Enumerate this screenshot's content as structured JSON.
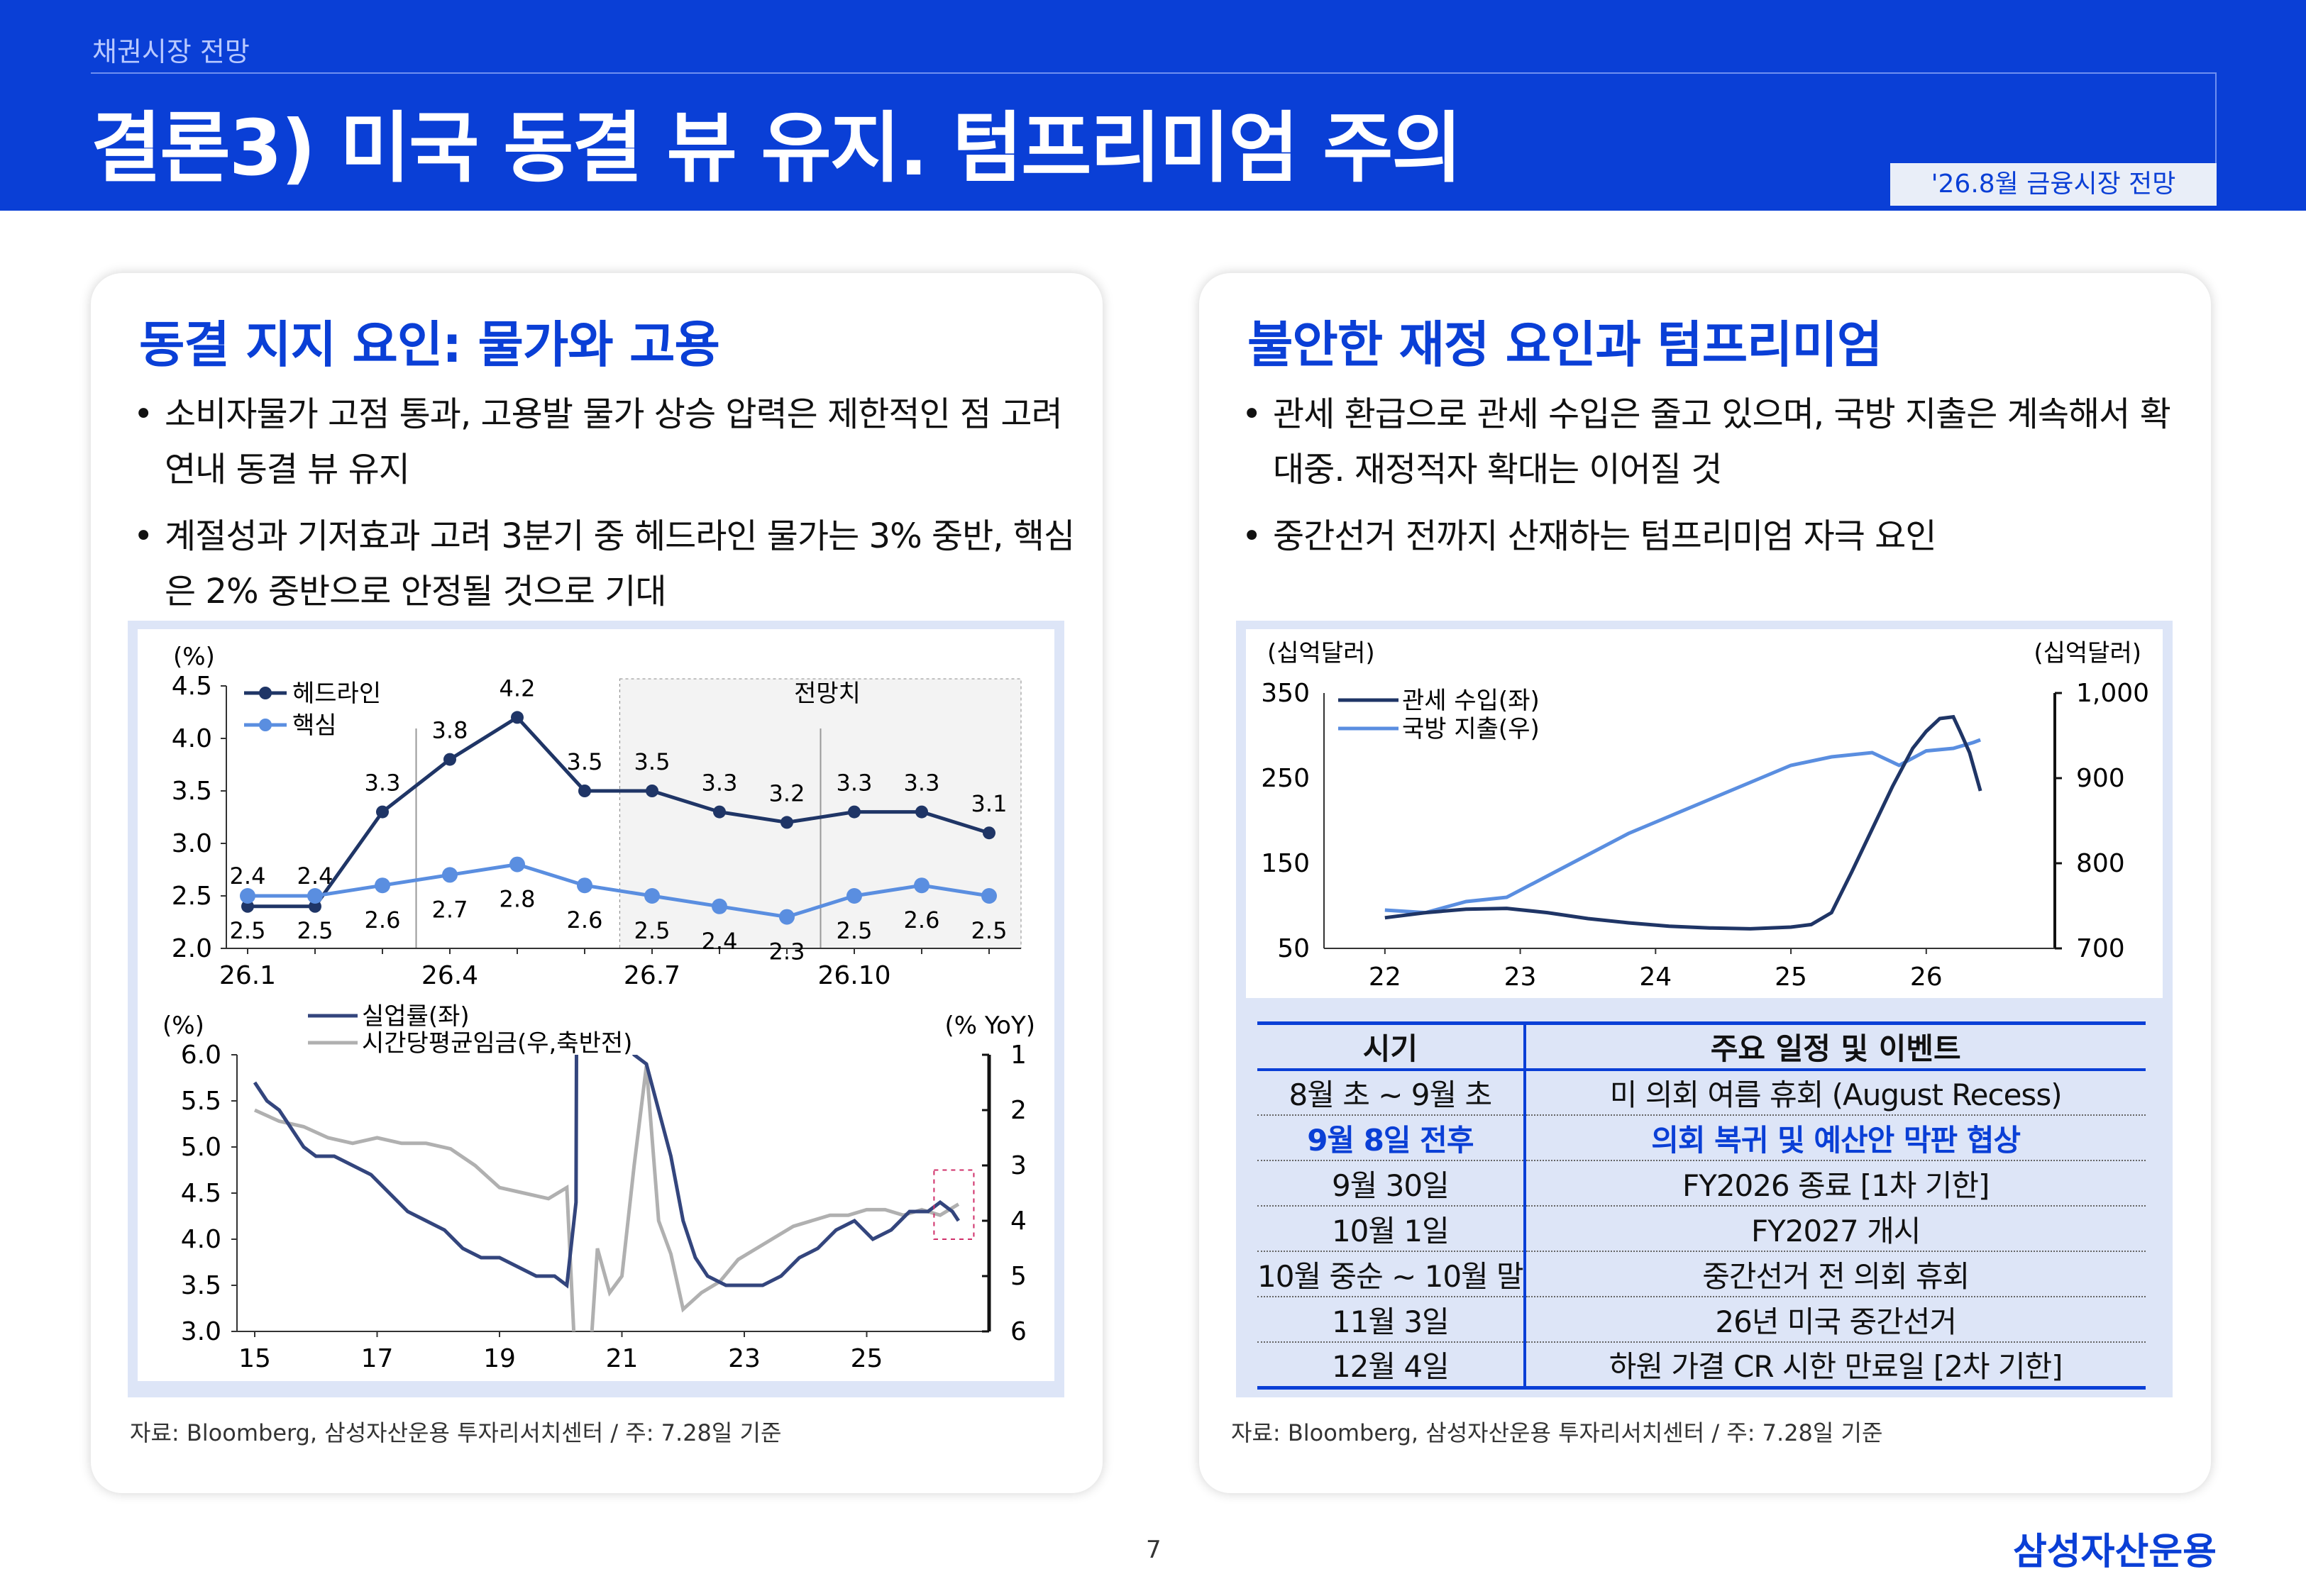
{
  "header": {
    "section": "채권시장 전망",
    "title": "결론3) 미국 동결 뷰 유지. 텀프리미엄 주의",
    "tag": "'26.8월 금융시장 전망"
  },
  "left_panel": {
    "title": "동결 지지 요인: 물가와 고용",
    "bullets": [
      "소비자물가 고점 통과, 고용발 물가 상승 압력은 제한적인 점 고려 연내 동결 뷰 유지",
      "계절성과 기저효과 고려 3분기 중 헤드라인 물가는 3% 중반, 핵심은 2% 중반으로 안정될 것으로 기대"
    ],
    "source": "자료: Bloomberg, 삼성자산운용 투자리서치센터 / 주: 7.28일 기준"
  },
  "right_panel": {
    "title": "불안한 재정 요인과 텀프리미엄",
    "bullets": [
      "관세 환급으로 관세 수입은 줄고 있으며, 국방 지출은 계속해서 확대중. 재정적자 확대는 이어질 것",
      "중간선거 전까지 산재하는 텀프리미엄 자극 요인"
    ],
    "source": "자료: Bloomberg, 삼성자산운용 투자리서치센터 / 주: 7.28일 기준",
    "schedule": {
      "headers": [
        "시기",
        "주요 일정 및 이벤트"
      ],
      "rows": [
        {
          "date": "8월 초 ~ 9월 초",
          "event": "미 의회 여름 휴회 (August Recess)",
          "highlight": false
        },
        {
          "date": "9월 8일 전후",
          "event": "의회 복귀 및 예산안 막판 협상",
          "highlight": true
        },
        {
          "date": "9월 30일",
          "event": "FY2026 종료 [1차 기한]",
          "highlight": false
        },
        {
          "date": "10월 1일",
          "event": "FY2027 개시",
          "highlight": false
        },
        {
          "date": "10월 중순 ~ 10월 말",
          "event": "중간선거 전 의회 휴회",
          "highlight": false
        },
        {
          "date": "11월 3일",
          "event": "26년 미국 중간선거",
          "highlight": false
        },
        {
          "date": "12월 4일",
          "event": "하원 가결 CR 시한 만료일 [2차 기한]",
          "highlight": false
        }
      ]
    }
  },
  "page_number": "7",
  "logo": "삼성자산운용",
  "chart_data": [
    {
      "type": "line",
      "ylabel": "(%)",
      "ylim": [
        2.0,
        4.5
      ],
      "yticks": [
        "4.5",
        "4.0",
        "3.5",
        "3.0",
        "2.5",
        "2.0"
      ],
      "x_tick_labels": [
        "26.1",
        "26.4",
        "26.7",
        "26.10"
      ],
      "x": [
        1,
        2,
        3,
        4,
        5,
        6,
        7,
        8,
        9,
        10,
        11,
        12
      ],
      "shaded_label": "전망치",
      "shaded_from_month": 6.5,
      "series": [
        {
          "name": "헤드라인",
          "color": "#1f3566",
          "values": [
            2.4,
            2.4,
            3.3,
            3.8,
            4.2,
            3.5,
            3.5,
            3.3,
            3.2,
            3.3,
            3.3,
            3.1
          ]
        },
        {
          "name": "핵심",
          "color": "#5a8ee0",
          "values": [
            2.5,
            2.5,
            2.6,
            2.7,
            2.8,
            2.6,
            2.5,
            2.4,
            2.3,
            2.5,
            2.6,
            2.5
          ]
        }
      ]
    },
    {
      "type": "line",
      "ylabel_left": "(%)",
      "ylabel_right": "(% YoY)",
      "ylim_left": [
        3.0,
        6.0
      ],
      "yticks_left": [
        "6.0",
        "5.5",
        "5.0",
        "4.5",
        "4.0",
        "3.5",
        "3.0"
      ],
      "ylim_right_inverted": [
        1,
        6
      ],
      "yticks_right": [
        "1",
        "2",
        "3",
        "4",
        "5",
        "6"
      ],
      "x_tick_labels": [
        "15",
        "17",
        "19",
        "21",
        "23",
        "25"
      ],
      "series": [
        {
          "name": "실업률(좌)",
          "color": "#33457d",
          "x": [
            2015.0,
            2015.2,
            2015.4,
            2015.6,
            2015.8,
            2016.0,
            2016.3,
            2016.6,
            2016.9,
            2017.2,
            2017.5,
            2017.8,
            2018.1,
            2018.4,
            2018.7,
            2019.0,
            2019.3,
            2019.6,
            2019.9,
            2020.1,
            2020.25,
            2020.3,
            2020.45,
            2020.6,
            2020.75,
            2020.9,
            2021.0,
            2021.2,
            2021.4,
            2021.6,
            2021.8,
            2022.0,
            2022.2,
            2022.4,
            2022.7,
            2023.0,
            2023.3,
            2023.6,
            2023.9,
            2024.2,
            2024.5,
            2024.8,
            2025.1,
            2025.4,
            2025.7,
            2026.0,
            2026.2,
            2026.4,
            2026.5
          ],
          "values": [
            5.7,
            5.5,
            5.4,
            5.2,
            5.0,
            4.9,
            4.9,
            4.8,
            4.7,
            4.5,
            4.3,
            4.2,
            4.1,
            3.9,
            3.8,
            3.8,
            3.7,
            3.6,
            3.6,
            3.5,
            4.4,
            14.7,
            13.0,
            10.5,
            8.4,
            7.0,
            6.3,
            6.0,
            5.9,
            5.4,
            4.9,
            4.2,
            3.8,
            3.6,
            3.5,
            3.5,
            3.5,
            3.6,
            3.8,
            3.9,
            4.1,
            4.2,
            4.0,
            4.1,
            4.3,
            4.3,
            4.4,
            4.3,
            4.2
          ]
        },
        {
          "name": "시간당평균임금(우,축반전)",
          "color": "#b0b0b0",
          "x": [
            2015.0,
            2015.4,
            2015.8,
            2016.2,
            2016.6,
            2017.0,
            2017.4,
            2017.8,
            2018.2,
            2018.6,
            2019.0,
            2019.4,
            2019.8,
            2020.1,
            2020.3,
            2020.45,
            2020.6,
            2020.8,
            2021.0,
            2021.2,
            2021.4,
            2021.6,
            2021.8,
            2022.0,
            2022.3,
            2022.6,
            2022.9,
            2023.2,
            2023.5,
            2023.8,
            2024.1,
            2024.4,
            2024.7,
            2025.0,
            2025.3,
            2025.6,
            2025.9,
            2026.2,
            2026.5
          ],
          "values": [
            2.0,
            2.2,
            2.3,
            2.5,
            2.6,
            2.5,
            2.6,
            2.6,
            2.7,
            3.0,
            3.4,
            3.5,
            3.6,
            3.4,
            8.0,
            7.0,
            4.5,
            5.3,
            5.0,
            3.0,
            1.2,
            4.0,
            4.6,
            5.6,
            5.3,
            5.1,
            4.7,
            4.5,
            4.3,
            4.1,
            4.0,
            3.9,
            3.9,
            3.8,
            3.8,
            3.9,
            3.8,
            3.9,
            3.7
          ]
        }
      ],
      "highlight_box": "dashed-red"
    },
    {
      "type": "line",
      "ylabel_left": "(십억달러)",
      "ylabel_right": "(십억달러)",
      "ylim_left": [
        50,
        350
      ],
      "yticks_left": [
        "350",
        "250",
        "150",
        "50"
      ],
      "ylim_right": [
        700,
        1000
      ],
      "yticks_right": [
        "1,000",
        "900",
        "800",
        "700"
      ],
      "x_tick_labels": [
        "22",
        "23",
        "24",
        "25",
        "26"
      ],
      "series": [
        {
          "name": "관세 수입(좌)",
          "color": "#1f3566",
          "x": [
            2022.0,
            2022.3,
            2022.6,
            2022.9,
            2023.2,
            2023.5,
            2023.8,
            2024.1,
            2024.4,
            2024.7,
            2025.0,
            2025.15,
            2025.3,
            2025.45,
            2025.6,
            2025.75,
            2025.9,
            2026.0,
            2026.1,
            2026.2,
            2026.25,
            2026.32,
            2026.4
          ],
          "values": [
            86,
            92,
            96,
            97,
            92,
            85,
            80,
            76,
            74,
            73,
            75,
            78,
            92,
            140,
            190,
            240,
            285,
            305,
            320,
            322,
            305,
            280,
            235
          ]
        },
        {
          "name": "국방 지출(우)",
          "color": "#5a8ee0",
          "x": [
            2022.0,
            2022.3,
            2022.6,
            2022.9,
            2023.2,
            2023.5,
            2023.8,
            2024.1,
            2024.4,
            2024.7,
            2025.0,
            2025.3,
            2025.6,
            2025.8,
            2026.0,
            2026.2,
            2026.35,
            2026.4
          ],
          "values": [
            745,
            742,
            755,
            760,
            785,
            810,
            835,
            855,
            875,
            895,
            915,
            925,
            930,
            915,
            932,
            935,
            942,
            945
          ]
        }
      ]
    }
  ]
}
